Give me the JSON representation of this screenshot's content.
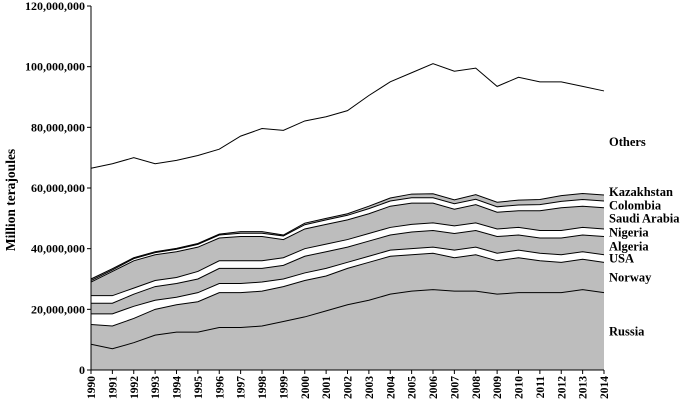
{
  "chart_data": {
    "type": "area",
    "stacked": true,
    "ylabel": "Million terajoules",
    "xlabel": "",
    "title": "",
    "ylim": [
      0,
      120000000
    ],
    "yticks": [
      0,
      20000000,
      40000000,
      60000000,
      80000000,
      100000000,
      120000000
    ],
    "ytick_labels": [
      "0",
      "20,000,000",
      "40,000,000",
      "60,000,000",
      "80,000,000",
      "100,000,000",
      "120,000,000"
    ],
    "x": [
      "1990",
      "1991",
      "1992",
      "1993",
      "1994",
      "1995",
      "1996",
      "1997",
      "1998",
      "1999",
      "2000",
      "2001",
      "2002",
      "2003",
      "2004",
      "2005",
      "2006",
      "2007",
      "2008",
      "2009",
      "2010",
      "2011",
      "2012",
      "2013",
      "2014"
    ],
    "grid": false,
    "legend": "inline labels at right",
    "colors": {
      "shaded": "#bdbdbd",
      "clear": "#ffffff",
      "line": "#000000"
    },
    "series": [
      {
        "name": "Russia",
        "fill": "#bdbdbd",
        "values": [
          8500000,
          7000000,
          9000000,
          11500000,
          12500000,
          12500000,
          14000000,
          14000000,
          14500000,
          16000000,
          17500000,
          19500000,
          21500000,
          23000000,
          25000000,
          26000000,
          26500000,
          26000000,
          26000000,
          25000000,
          25500000,
          25500000,
          25500000,
          26500000,
          25500000
        ]
      },
      {
        "name": "Norway",
        "fill": "#bdbdbd",
        "values": [
          6500000,
          7500000,
          8000000,
          8500000,
          9000000,
          10000000,
          11500000,
          11500000,
          11500000,
          11500000,
          12000000,
          11500000,
          12000000,
          12500000,
          12500000,
          12000000,
          12000000,
          11000000,
          12000000,
          11000000,
          11500000,
          10500000,
          10000000,
          10000000,
          10000000
        ]
      },
      {
        "name": "USA",
        "fill": "#ffffff",
        "values": [
          3500000,
          4000000,
          4000000,
          3000000,
          2500000,
          3000000,
          3000000,
          3000000,
          3000000,
          2500000,
          2500000,
          2500000,
          2000000,
          2000000,
          2000000,
          2000000,
          2000000,
          2500000,
          2500000,
          2500000,
          2500000,
          2500000,
          2500000,
          2500000,
          2500000
        ]
      },
      {
        "name": "Algeria",
        "fill": "#bdbdbd",
        "values": [
          3500000,
          3500000,
          4000000,
          4500000,
          4500000,
          4500000,
          5000000,
          5000000,
          4500000,
          4500000,
          5500000,
          5500000,
          5000000,
          5000000,
          5000000,
          5500000,
          5500000,
          5500000,
          5500000,
          5500000,
          5000000,
          5000000,
          5500000,
          5500000,
          6000000
        ]
      },
      {
        "name": "Nigeria",
        "fill": "#ffffff",
        "values": [
          2500000,
          2500000,
          2000000,
          2000000,
          2000000,
          2500000,
          2500000,
          2500000,
          2500000,
          2500000,
          2500000,
          2500000,
          2500000,
          2500000,
          2500000,
          2500000,
          2500000,
          2500000,
          2500000,
          2500000,
          2500000,
          2500000,
          2500000,
          2500000,
          2500000
        ]
      },
      {
        "name": "Saudi Arabia",
        "fill": "#bdbdbd",
        "values": [
          4500000,
          8000000,
          9000000,
          8500000,
          8500000,
          8000000,
          7500000,
          8000000,
          8000000,
          6000000,
          6500000,
          6500000,
          6500000,
          6500000,
          7000000,
          7000000,
          6500000,
          5500000,
          6000000,
          5500000,
          5500000,
          6500000,
          7500000,
          7000000,
          7000000
        ]
      },
      {
        "name": "Colombia",
        "fill": "#ffffff",
        "values": [
          500000,
          500000,
          700000,
          700000,
          800000,
          900000,
          1000000,
          1100000,
          1100000,
          1200000,
          1400000,
          1500000,
          1500000,
          1700000,
          1700000,
          1800000,
          1800000,
          1800000,
          1800000,
          1800000,
          1900000,
          2000000,
          2100000,
          2200000,
          2200000
        ]
      },
      {
        "name": "Kazakhstan",
        "fill": "#bdbdbd",
        "values": [
          500000,
          400000,
          300000,
          300000,
          300000,
          300000,
          300000,
          500000,
          500000,
          300000,
          500000,
          500000,
          500000,
          800000,
          1000000,
          1200000,
          1300000,
          1300000,
          1500000,
          1500000,
          1600000,
          1700000,
          1900000,
          2000000,
          2000000
        ]
      },
      {
        "name": "Others",
        "fill": "#ffffff",
        "values": [
          36500000,
          34600000,
          33000000,
          29000000,
          29000000,
          29000000,
          28000000,
          31500000,
          34000000,
          34500000,
          33700000,
          33500000,
          34000000,
          36500000,
          38300000,
          40000000,
          42900000,
          42400000,
          41700000,
          38200000,
          40500000,
          38800000,
          37500000,
          35300000,
          34300000
        ]
      }
    ]
  }
}
